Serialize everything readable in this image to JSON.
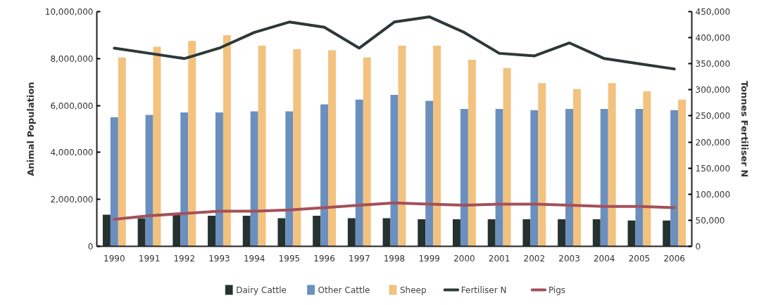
{
  "chart_data": {
    "type": "bar",
    "ylabel": "Animal Population",
    "y2label": "Tonnes Fertiliser N",
    "categories": [
      "1990",
      "1991",
      "1992",
      "1993",
      "1994",
      "1995",
      "1996",
      "1997",
      "1998",
      "1999",
      "2000",
      "2001",
      "2002",
      "2003",
      "2004",
      "2005",
      "2006"
    ],
    "ylim": [
      0,
      10000000
    ],
    "yticks": [
      0,
      {
        "value": 2000000,
        "label": "2,000,000"
      },
      {
        "value": 4000000,
        "label": "4,000,000"
      },
      {
        "value": 6000000,
        "label": "6,000,000"
      },
      {
        "value": 8000000,
        "label": "8,000,000"
      },
      {
        "value": 10000000,
        "label": "10,000,000"
      }
    ],
    "y2lim": [
      0,
      450000
    ],
    "y2ticks": [
      0,
      {
        "value": 50000,
        "label": "50,000"
      },
      {
        "value": 100000,
        "label": "100,000"
      },
      {
        "value": 150000,
        "label": "150,000"
      },
      {
        "value": 200000,
        "label": "200,000"
      },
      {
        "value": 250000,
        "label": "250,000"
      },
      {
        "value": 300000,
        "label": "300,000"
      },
      {
        "value": 350000,
        "label": "350,000"
      },
      {
        "value": 400000,
        "label": "400,000"
      },
      {
        "value": 450000,
        "label": "450,000"
      }
    ],
    "series": [
      {
        "name": "Dairy Cattle",
        "color": "#253230",
        "values": [
          1350000,
          1200000,
          1350000,
          1300000,
          1300000,
          1200000,
          1300000,
          1200000,
          1200000,
          1150000,
          1150000,
          1150000,
          1150000,
          1150000,
          1150000,
          1100000,
          1100000
        ]
      },
      {
        "name": "Other Cattle",
        "color": "#6b8fbe",
        "values": [
          5500000,
          5600000,
          5700000,
          5700000,
          5750000,
          5750000,
          6050000,
          6250000,
          6450000,
          6200000,
          5850000,
          5850000,
          5800000,
          5850000,
          5850000,
          5850000,
          5800000
        ]
      },
      {
        "name": "Sheep",
        "color": "#f2c27e",
        "values": [
          8050000,
          8500000,
          8750000,
          9000000,
          8550000,
          8400000,
          8350000,
          8050000,
          8550000,
          8550000,
          7950000,
          7600000,
          6950000,
          6700000,
          6950000,
          6600000,
          6250000
        ]
      },
      {
        "name": "Fertiliser N",
        "type": "line",
        "axis": "y2",
        "color": "#2d3838",
        "values": [
          380000,
          370000,
          360000,
          380000,
          410000,
          430000,
          420000,
          380000,
          430000,
          440000,
          410000,
          370000,
          365000,
          390000,
          360000,
          350000,
          340000
        ]
      },
      {
        "name": "Pigs",
        "type": "line",
        "color": "#a4505a",
        "values": [
          1150000,
          1300000,
          1400000,
          1500000,
          1500000,
          1550000,
          1650000,
          1750000,
          1850000,
          1800000,
          1750000,
          1800000,
          1800000,
          1750000,
          1700000,
          1700000,
          1650000
        ]
      }
    ],
    "grid": false,
    "legend": "bottom"
  }
}
